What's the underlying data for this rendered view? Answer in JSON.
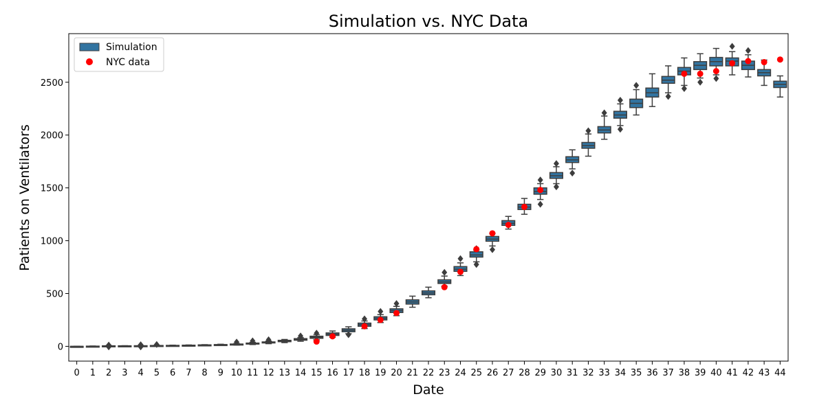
{
  "chart_data": {
    "type": "box",
    "title": "Simulation vs. NYC Data",
    "xlabel": "Date",
    "ylabel": "Patients on Ventilators",
    "categories": [
      "0",
      "1",
      "2",
      "3",
      "4",
      "5",
      "6",
      "7",
      "8",
      "9",
      "10",
      "11",
      "12",
      "13",
      "14",
      "15",
      "16",
      "17",
      "18",
      "19",
      "20",
      "21",
      "22",
      "23",
      "24",
      "25",
      "26",
      "27",
      "28",
      "29",
      "30",
      "31",
      "32",
      "33",
      "34",
      "35",
      "36",
      "37",
      "38",
      "39",
      "40",
      "41",
      "42",
      "43",
      "44"
    ],
    "yticks": [
      0,
      500,
      1000,
      1500,
      2000,
      2500
    ],
    "ylim": [
      -140,
      2960
    ],
    "grid": false,
    "legend_position": "top-left",
    "series": [
      {
        "name": "Simulation",
        "kind": "box",
        "color": "#3274a1",
        "stats": [
          {
            "wlo": 0,
            "q1": 0,
            "med": 0,
            "q3": 0,
            "whi": 0,
            "out_lo": [],
            "out_hi": []
          },
          {
            "wlo": 0,
            "q1": 0,
            "med": 1,
            "q3": 2,
            "whi": 3,
            "out_lo": [],
            "out_hi": []
          },
          {
            "wlo": 2,
            "q1": 3,
            "med": 4,
            "q3": 5,
            "whi": 7,
            "out_lo": [
              -5
            ],
            "out_hi": [
              12
            ]
          },
          {
            "wlo": 2,
            "q1": 3,
            "med": 4,
            "q3": 5,
            "whi": 6,
            "out_lo": [],
            "out_hi": []
          },
          {
            "wlo": 2,
            "q1": 4,
            "med": 5,
            "q3": 6,
            "whi": 8,
            "out_lo": [
              -5
            ],
            "out_hi": [
              15
            ]
          },
          {
            "wlo": 4,
            "q1": 5,
            "med": 6,
            "q3": 8,
            "whi": 10,
            "out_lo": [],
            "out_hi": [
              18
            ]
          },
          {
            "wlo": 5,
            "q1": 6,
            "med": 7,
            "q3": 9,
            "whi": 11,
            "out_lo": [],
            "out_hi": []
          },
          {
            "wlo": 6,
            "q1": 8,
            "med": 9,
            "q3": 11,
            "whi": 13,
            "out_lo": [],
            "out_hi": []
          },
          {
            "wlo": 8,
            "q1": 10,
            "med": 12,
            "q3": 14,
            "whi": 16,
            "out_lo": [],
            "out_hi": []
          },
          {
            "wlo": 10,
            "q1": 13,
            "med": 15,
            "q3": 17,
            "whi": 20,
            "out_lo": [],
            "out_hi": []
          },
          {
            "wlo": 12,
            "q1": 16,
            "med": 19,
            "q3": 22,
            "whi": 27,
            "out_lo": [],
            "out_hi": [
              40
            ]
          },
          {
            "wlo": 17,
            "q1": 23,
            "med": 27,
            "q3": 31,
            "whi": 38,
            "out_lo": [],
            "out_hi": [
              52
            ]
          },
          {
            "wlo": 25,
            "q1": 32,
            "med": 37,
            "q3": 42,
            "whi": 50,
            "out_lo": [],
            "out_hi": [
              62
            ]
          },
          {
            "wlo": 35,
            "q1": 44,
            "med": 50,
            "q3": 57,
            "whi": 65,
            "out_lo": [],
            "out_hi": []
          },
          {
            "wlo": 48,
            "q1": 58,
            "med": 65,
            "q3": 73,
            "whi": 83,
            "out_lo": [],
            "out_hi": [
              98
            ]
          },
          {
            "wlo": 62,
            "q1": 76,
            "med": 86,
            "q3": 96,
            "whi": 110,
            "out_lo": [],
            "out_hi": [
              125
            ]
          },
          {
            "wlo": 85,
            "q1": 103,
            "med": 115,
            "q3": 127,
            "whi": 145,
            "out_lo": [],
            "out_hi": []
          },
          {
            "wlo": 120,
            "q1": 138,
            "med": 152,
            "q3": 166,
            "whi": 185,
            "out_lo": [
              110
            ],
            "out_hi": []
          },
          {
            "wlo": 168,
            "q1": 190,
            "med": 205,
            "q3": 220,
            "whi": 240,
            "out_lo": [],
            "out_hi": [
              260
            ]
          },
          {
            "wlo": 225,
            "q1": 250,
            "med": 265,
            "q3": 280,
            "whi": 300,
            "out_lo": [],
            "out_hi": [
              330
            ]
          },
          {
            "wlo": 290,
            "q1": 320,
            "med": 338,
            "q3": 355,
            "whi": 378,
            "out_lo": [],
            "out_hi": [
              405
            ]
          },
          {
            "wlo": 370,
            "q1": 400,
            "med": 420,
            "q3": 440,
            "whi": 475,
            "out_lo": [],
            "out_hi": []
          },
          {
            "wlo": 460,
            "q1": 488,
            "med": 505,
            "q3": 525,
            "whi": 560,
            "out_lo": [],
            "out_hi": []
          },
          {
            "wlo": 570,
            "q1": 595,
            "med": 610,
            "q3": 630,
            "whi": 665,
            "out_lo": [],
            "out_hi": [
              700
            ]
          },
          {
            "wlo": 670,
            "q1": 710,
            "med": 730,
            "q3": 755,
            "whi": 790,
            "out_lo": [],
            "out_hi": [
              830
            ]
          },
          {
            "wlo": 800,
            "q1": 845,
            "med": 865,
            "q3": 895,
            "whi": 910,
            "out_lo": [
              775
            ],
            "out_hi": [
              925
            ]
          },
          {
            "wlo": 950,
            "q1": 995,
            "med": 1015,
            "q3": 1040,
            "whi": 1070,
            "out_lo": [
              915
            ],
            "out_hi": []
          },
          {
            "wlo": 1110,
            "q1": 1145,
            "med": 1165,
            "q3": 1190,
            "whi": 1230,
            "out_lo": [],
            "out_hi": []
          },
          {
            "wlo": 1250,
            "q1": 1295,
            "med": 1318,
            "q3": 1345,
            "whi": 1400,
            "out_lo": [],
            "out_hi": []
          },
          {
            "wlo": 1390,
            "q1": 1440,
            "med": 1465,
            "q3": 1500,
            "whi": 1540,
            "out_lo": [
              1345
            ],
            "out_hi": [
              1575
            ]
          },
          {
            "wlo": 1540,
            "q1": 1590,
            "med": 1615,
            "q3": 1645,
            "whi": 1700,
            "out_lo": [
              1510
            ],
            "out_hi": [
              1730
            ]
          },
          {
            "wlo": 1680,
            "q1": 1740,
            "med": 1765,
            "q3": 1795,
            "whi": 1860,
            "out_lo": [
              1640
            ],
            "out_hi": []
          },
          {
            "wlo": 1800,
            "q1": 1875,
            "med": 1900,
            "q3": 1930,
            "whi": 2010,
            "out_lo": [],
            "out_hi": [
              2040
            ]
          },
          {
            "wlo": 1960,
            "q1": 2020,
            "med": 2048,
            "q3": 2080,
            "whi": 2180,
            "out_lo": [],
            "out_hi": [
              2210
            ]
          },
          {
            "wlo": 2090,
            "q1": 2160,
            "med": 2190,
            "q3": 2225,
            "whi": 2295,
            "out_lo": [
              2055
            ],
            "out_hi": [
              2330
            ]
          },
          {
            "wlo": 2190,
            "q1": 2260,
            "med": 2300,
            "q3": 2340,
            "whi": 2430,
            "out_lo": [],
            "out_hi": [
              2470
            ]
          },
          {
            "wlo": 2270,
            "q1": 2360,
            "med": 2400,
            "q3": 2445,
            "whi": 2580,
            "out_lo": [],
            "out_hi": []
          },
          {
            "wlo": 2400,
            "q1": 2490,
            "med": 2520,
            "q3": 2555,
            "whi": 2655,
            "out_lo": [
              2365
            ],
            "out_hi": []
          },
          {
            "wlo": 2470,
            "q1": 2570,
            "med": 2605,
            "q3": 2640,
            "whi": 2730,
            "out_lo": [
              2440
            ],
            "out_hi": []
          },
          {
            "wlo": 2540,
            "q1": 2620,
            "med": 2660,
            "q3": 2695,
            "whi": 2770,
            "out_lo": [
              2500
            ],
            "out_hi": []
          },
          {
            "wlo": 2570,
            "q1": 2655,
            "med": 2695,
            "q3": 2735,
            "whi": 2820,
            "out_lo": [
              2535
            ],
            "out_hi": []
          },
          {
            "wlo": 2570,
            "q1": 2655,
            "med": 2700,
            "q3": 2730,
            "whi": 2790,
            "out_lo": [],
            "out_hi": [
              2840
            ]
          },
          {
            "wlo": 2550,
            "q1": 2620,
            "med": 2660,
            "q3": 2700,
            "whi": 2760,
            "out_lo": [],
            "out_hi": [
              2800
            ]
          },
          {
            "wlo": 2470,
            "q1": 2560,
            "med": 2590,
            "q3": 2620,
            "whi": 2710,
            "out_lo": [],
            "out_hi": []
          },
          {
            "wlo": 2360,
            "q1": 2450,
            "med": 2480,
            "q3": 2510,
            "whi": 2560,
            "out_lo": [],
            "out_hi": []
          }
        ]
      },
      {
        "name": "NYC data",
        "kind": "scatter",
        "color": "#ff0000",
        "values": [
          null,
          null,
          null,
          null,
          null,
          null,
          null,
          null,
          null,
          null,
          null,
          null,
          null,
          null,
          null,
          45,
          95,
          null,
          190,
          250,
          315,
          null,
          null,
          560,
          705,
          920,
          1070,
          1150,
          1320,
          1480,
          null,
          null,
          null,
          null,
          null,
          null,
          null,
          null,
          2580,
          2580,
          2605,
          2680,
          2700,
          2690,
          2715
        ]
      }
    ]
  }
}
